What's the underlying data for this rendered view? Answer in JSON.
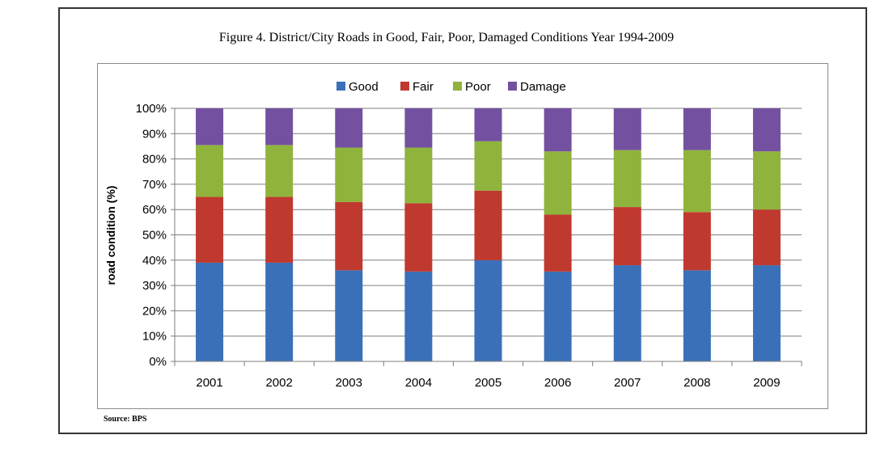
{
  "figure": {
    "title": "Figure 4. District/City Roads in Good, Fair, Poor, Damaged Conditions Year 1994-2009",
    "source": "Source: BPS"
  },
  "colors": {
    "good": "#3a70b8",
    "fair": "#c0392f",
    "poor": "#8fb33c",
    "damage": "#7450a0",
    "grid": "#7f7f7f"
  },
  "chart_data": {
    "type": "bar",
    "stacked": true,
    "categories": [
      "2001",
      "2002",
      "2003",
      "2004",
      "2005",
      "2006",
      "2007",
      "2008",
      "2009"
    ],
    "series": [
      {
        "name": "Good",
        "color": "#3a70b8",
        "values": [
          39,
          39,
          36,
          35.5,
          40,
          35.5,
          38,
          36,
          38
        ]
      },
      {
        "name": "Fair",
        "color": "#c0392f",
        "values": [
          26,
          26,
          27,
          27,
          27.5,
          22.5,
          23,
          23,
          22
        ]
      },
      {
        "name": "Poor",
        "color": "#8fb33c",
        "values": [
          20.5,
          20.5,
          21.5,
          22,
          19.5,
          25,
          22.5,
          24.5,
          23
        ]
      },
      {
        "name": "Damage",
        "color": "#7450a0",
        "values": [
          14.5,
          14.5,
          15.5,
          15.5,
          13,
          17,
          16.5,
          16.5,
          17
        ]
      }
    ],
    "yticks": [
      "0%",
      "10%",
      "20%",
      "30%",
      "40%",
      "50%",
      "60%",
      "70%",
      "80%",
      "90%",
      "100%"
    ],
    "ylim": [
      0,
      100
    ],
    "xlabel": "",
    "ylabel": "road condition (%)",
    "grid": true,
    "legend_position": "top"
  }
}
